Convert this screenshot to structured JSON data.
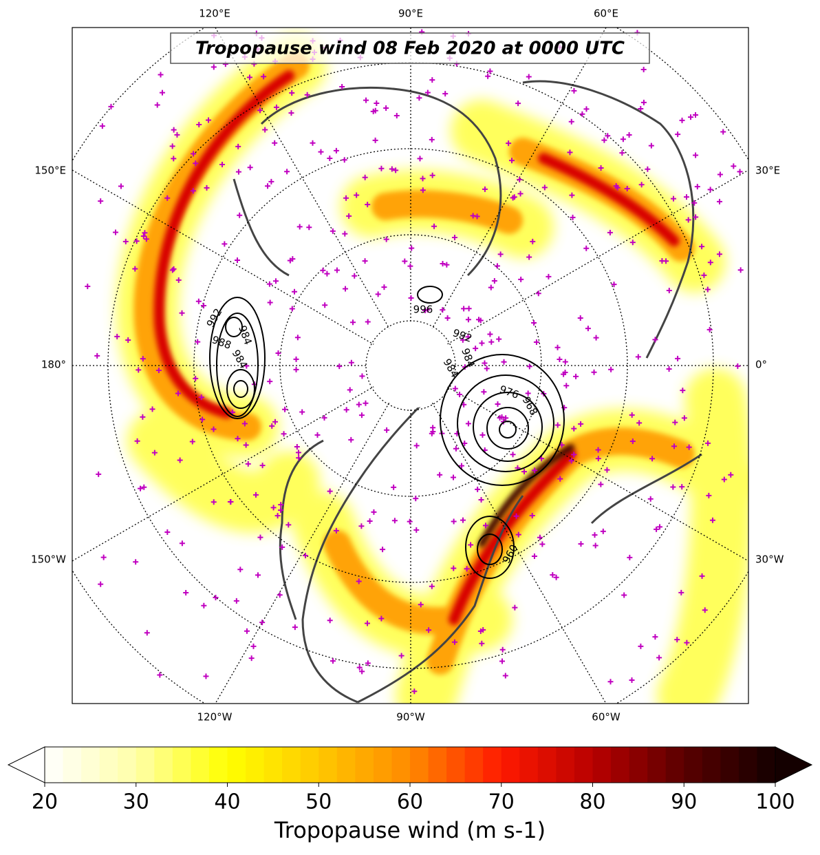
{
  "title": "Tropopause wind 08 Feb 2020 at 0000 UTC",
  "map": {
    "lon_labels_top": [
      "120°E",
      "90°E",
      "60°E"
    ],
    "lon_labels_bottom": [
      "120°W",
      "90°W",
      "60°W"
    ],
    "lon_labels_left": [
      "150°E",
      "180°",
      "150°W"
    ],
    "lon_labels_right": [
      "30°E",
      "0°",
      "30°W"
    ],
    "contour_labels": [
      "992",
      "984",
      "988",
      "984",
      "992",
      "984",
      "984",
      "976",
      "968",
      "960",
      "996"
    ]
  },
  "colorbar": {
    "label": "Tropopause wind (m s-1)",
    "lim": [
      20,
      100
    ],
    "ticks": [
      20,
      30,
      40,
      50,
      60,
      70,
      80,
      90,
      100
    ],
    "colors": [
      "#ffffff",
      "#ffffa8",
      "#ffff00",
      "#ffc800",
      "#ff8a00",
      "#ff1a00",
      "#b80000",
      "#5a0000",
      "#140000"
    ],
    "extend": "both"
  }
}
